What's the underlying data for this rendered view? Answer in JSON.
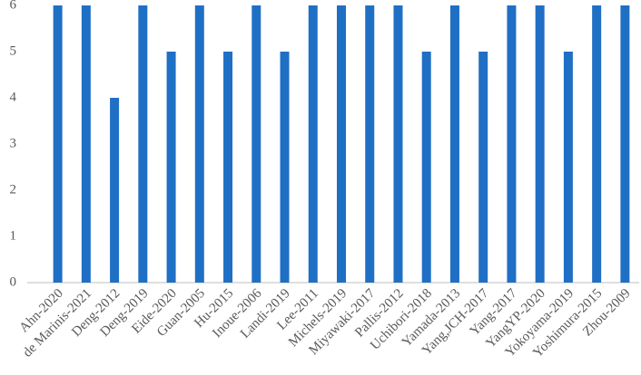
{
  "chart_data": {
    "type": "bar",
    "categories": [
      "Ahn-2020",
      "de Marinis-2021",
      "Deng-2012",
      "Deng-2019",
      "Eide-2020",
      "Guan-2005",
      "Hu-2015",
      "Inoue-2006",
      "Landi-2019",
      "Lee-2011",
      "Michels-2019",
      "Miyawaki-2017",
      "Pallis-2012",
      "Uchibori-2018",
      "Yamada-2013",
      "Yang,JCH-2017",
      "Yang-2017",
      "YangYP-2020",
      "Yokoyama-2019",
      "Yoshimura-2015",
      "Zhou-2009"
    ],
    "values": [
      6,
      6,
      4,
      6,
      5,
      6,
      5,
      6,
      5,
      6,
      6,
      6,
      6,
      5,
      6,
      5,
      6,
      6,
      5,
      6,
      6
    ],
    "color": "#1f6fc5",
    "ylim": [
      0,
      6
    ],
    "yticks": [
      0,
      1,
      2,
      3,
      4,
      5,
      6
    ],
    "grid": false
  }
}
